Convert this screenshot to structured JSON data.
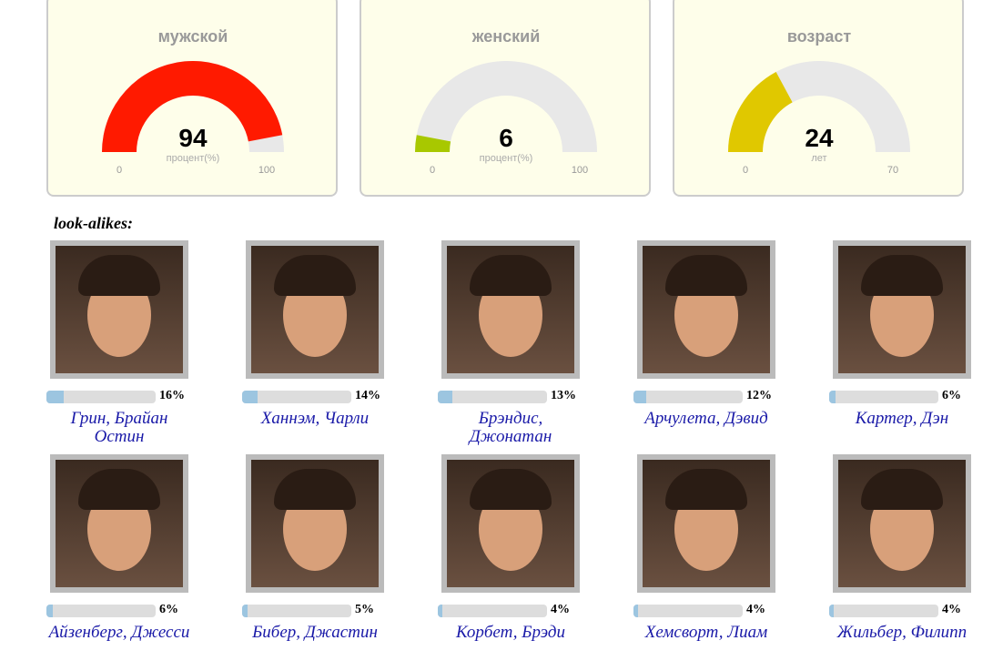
{
  "gauges": [
    {
      "title": "мужской",
      "value": 94,
      "unit": "процент(%)",
      "min": 0,
      "max": 100,
      "color": "#ff1a00"
    },
    {
      "title": "женский",
      "value": 6,
      "unit": "процент(%)",
      "min": 0,
      "max": 100,
      "color": "#a8c800"
    },
    {
      "title": "возраст",
      "value": 24,
      "unit": "лет",
      "min": 0,
      "max": 70,
      "color": "#e0c800"
    }
  ],
  "lookalikes": {
    "title": "look-alikes:",
    "names": [
      "Грин, Брайан Остин",
      "Ханнэм, Чарли",
      "Брэндис, Джонатан",
      "Арчулета, Дэвид",
      "Картер, Дэн",
      "Айзенберг, Джесси",
      "Бибер, Джастин",
      "Корбет, Брэди",
      "Хемсворт, Лиам",
      "Жильбер, Филипп"
    ],
    "values": [
      16,
      14,
      13,
      12,
      6,
      6,
      5,
      4,
      4,
      4
    ],
    "value_labels": [
      "16%",
      "14%",
      "13%",
      "12%",
      "6%",
      "6%",
      "5%",
      "4%",
      "4%",
      "4%"
    ],
    "bar_lim": [
      0,
      100
    ],
    "bar_color": "#9cc5e0"
  }
}
